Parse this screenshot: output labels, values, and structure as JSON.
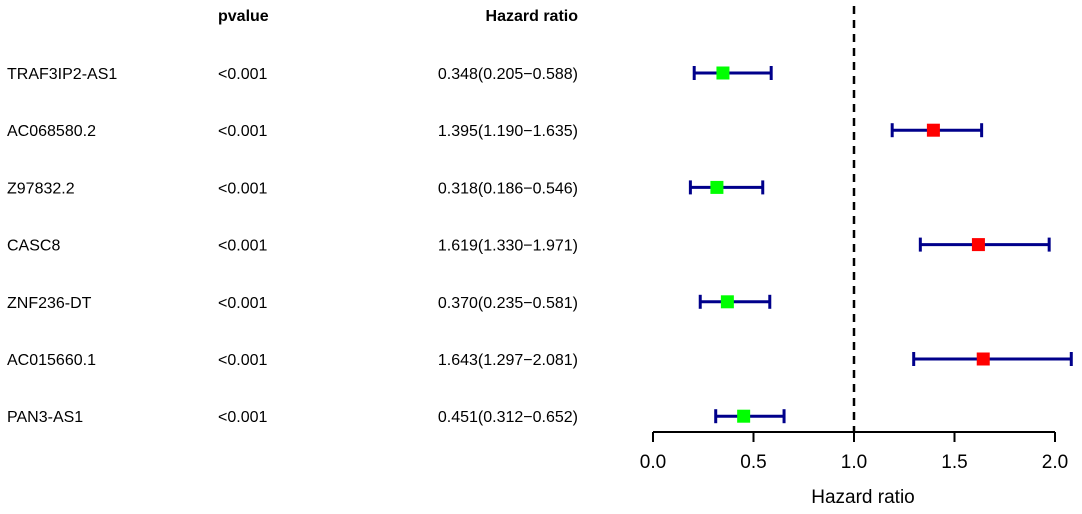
{
  "chart_data": {
    "type": "forest",
    "columns": {
      "pvalue": "pvalue",
      "hr": "Hazard ratio"
    },
    "rows": [
      {
        "gene": "TRAF3IP2-AS1",
        "pvalue": "<0.001",
        "hr_text": "0.348(0.205−0.588)",
        "hr": 0.348,
        "lower": 0.205,
        "upper": 0.588
      },
      {
        "gene": "AC068580.2",
        "pvalue": "<0.001",
        "hr_text": "1.395(1.190−1.635)",
        "hr": 1.395,
        "lower": 1.19,
        "upper": 1.635
      },
      {
        "gene": "Z97832.2",
        "pvalue": "<0.001",
        "hr_text": "0.318(0.186−0.546)",
        "hr": 0.318,
        "lower": 0.186,
        "upper": 0.546
      },
      {
        "gene": "CASC8",
        "pvalue": "<0.001",
        "hr_text": "1.619(1.330−1.971)",
        "hr": 1.619,
        "lower": 1.33,
        "upper": 1.971
      },
      {
        "gene": "ZNF236-DT",
        "pvalue": "<0.001",
        "hr_text": "0.370(0.235−0.581)",
        "hr": 0.37,
        "lower": 0.235,
        "upper": 0.581
      },
      {
        "gene": "AC015660.1",
        "pvalue": "<0.001",
        "hr_text": "1.643(1.297−2.081)",
        "hr": 1.643,
        "lower": 1.297,
        "upper": 2.081
      },
      {
        "gene": "PAN3-AS1",
        "pvalue": "<0.001",
        "hr_text": "0.451(0.312−0.652)",
        "hr": 0.451,
        "lower": 0.312,
        "upper": 0.652
      }
    ],
    "xlabel": "Hazard ratio",
    "xlim": [
      0.0,
      2.0
    ],
    "xticks": [
      "0.0",
      "0.5",
      "1.0",
      "1.5",
      "2.0"
    ],
    "reference_line": 1.0,
    "colors": {
      "protective": "#00ff00",
      "risk": "#ff0000",
      "ci": "#00008b",
      "reference": "#000000"
    }
  }
}
